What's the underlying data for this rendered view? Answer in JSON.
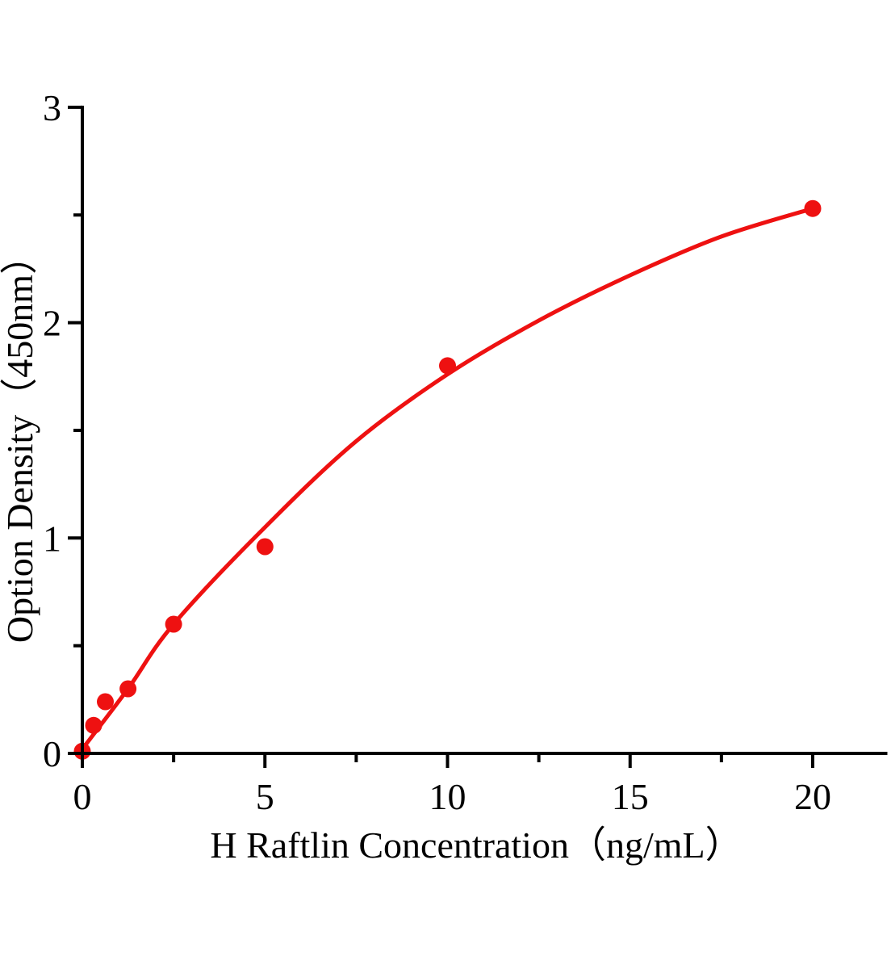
{
  "chart_data": {
    "type": "scatter",
    "title": "",
    "xlabel": "H Raftlin Concentration（ng/mL）",
    "ylabel": "Option Density（450nm）",
    "xlim": [
      0,
      22
    ],
    "ylim": [
      0,
      3
    ],
    "x_major_ticks": [
      0,
      5,
      10,
      15,
      20
    ],
    "x_minor_ticks": [
      2.5,
      7.5,
      12.5,
      17.5
    ],
    "y_major_ticks": [
      0,
      1,
      2,
      3
    ],
    "y_minor_ticks": [
      0.5,
      1.5,
      2.5
    ],
    "x_tick_labels": [
      "0",
      "5",
      "10",
      "15",
      "20"
    ],
    "y_tick_labels": [
      "0",
      "1",
      "2",
      "3"
    ],
    "points": [
      [
        0,
        0.01
      ],
      [
        0.31,
        0.13
      ],
      [
        0.63,
        0.24
      ],
      [
        1.25,
        0.3
      ],
      [
        2.5,
        0.6
      ],
      [
        5,
        0.96
      ],
      [
        10,
        1.8
      ],
      [
        20,
        2.53
      ]
    ],
    "fit_curve": [
      [
        0,
        0.02
      ],
      [
        1.25,
        0.3
      ],
      [
        2.5,
        0.6
      ],
      [
        5,
        1.05
      ],
      [
        7.5,
        1.45
      ],
      [
        10,
        1.76
      ],
      [
        12.5,
        2.01
      ],
      [
        15,
        2.22
      ],
      [
        17.5,
        2.4
      ],
      [
        20,
        2.53
      ]
    ],
    "grid": false,
    "legend": null,
    "colors": {
      "series": "#ee1111",
      "axis": "#000000",
      "background": "#ffffff"
    }
  }
}
